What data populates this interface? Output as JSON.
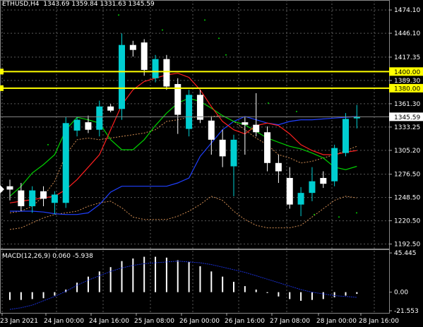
{
  "header": {
    "symbol": "ETHUSD,H4",
    "ohlc": "1343.69 1359.84 1331.63 1345.59"
  },
  "price_axis": {
    "ticks": [
      "1474.10",
      "1446.10",
      "1417.35",
      "1389.30",
      "1361.30",
      "1333.25",
      "1305.20",
      "1276.50",
      "1248.50",
      "1220.50",
      "1192.50"
    ],
    "levels": [
      {
        "label": "1400.00",
        "price": 1400.0,
        "color": "#FFFF00"
      },
      {
        "label": "1380.00",
        "price": 1380.0,
        "color": "#FFFF00"
      }
    ],
    "current_label": "1345.59",
    "current_price": 1345.59
  },
  "time_axis": {
    "labels": [
      "23 Jan 2021",
      "24 Jan 00:00",
      "24 Jan 16:00",
      "25 Jan 08:00",
      "26 Jan 00:00",
      "26 Jan 16:00",
      "27 Jan 08:00",
      "28 Jan 00:00",
      "28 Jan 16:00"
    ]
  },
  "macd": {
    "label": "MACD(12,26,9) 0.060 -5.938",
    "ticks": [
      "45.445",
      "0.00",
      "-21.553"
    ],
    "tick_values": [
      45.445,
      0.0,
      -21.553
    ]
  },
  "colors": {
    "background": "#000000",
    "bull_candle": "#00CED1",
    "bear_candle": "#FFFFFF",
    "grid": "#5a5a5a",
    "level_line": "#FFFF00",
    "ma_fast": "#FF2020",
    "ma_slow": "#00D000",
    "ma_blue": "#2040FF",
    "bands": "#F4A460"
  },
  "chart_data": {
    "type": "candlestick",
    "candles": [
      {
        "o": 1262,
        "h": 1270,
        "l": 1245,
        "c": 1258
      },
      {
        "o": 1257,
        "h": 1266,
        "l": 1232,
        "c": 1238
      },
      {
        "o": 1238,
        "h": 1262,
        "l": 1230,
        "c": 1257
      },
      {
        "o": 1256,
        "h": 1262,
        "l": 1238,
        "c": 1247
      },
      {
        "o": 1242,
        "h": 1256,
        "l": 1228,
        "c": 1252
      },
      {
        "o": 1242,
        "h": 1345,
        "l": 1236,
        "c": 1338
      },
      {
        "o": 1329,
        "h": 1345,
        "l": 1322,
        "c": 1342
      },
      {
        "o": 1339,
        "h": 1347,
        "l": 1326,
        "c": 1330
      },
      {
        "o": 1330,
        "h": 1365,
        "l": 1322,
        "c": 1358
      },
      {
        "o": 1358,
        "h": 1361,
        "l": 1351,
        "c": 1353
      },
      {
        "o": 1355,
        "h": 1446,
        "l": 1342,
        "c": 1432
      },
      {
        "o": 1432,
        "h": 1437,
        "l": 1418,
        "c": 1426
      },
      {
        "o": 1435,
        "h": 1439,
        "l": 1395,
        "c": 1402
      },
      {
        "o": 1392,
        "h": 1420,
        "l": 1387,
        "c": 1415
      },
      {
        "o": 1415,
        "h": 1420,
        "l": 1378,
        "c": 1382
      },
      {
        "o": 1385,
        "h": 1392,
        "l": 1325,
        "c": 1348
      },
      {
        "o": 1331,
        "h": 1378,
        "l": 1322,
        "c": 1372
      },
      {
        "o": 1372,
        "h": 1378,
        "l": 1338,
        "c": 1342
      },
      {
        "o": 1341,
        "h": 1346,
        "l": 1300,
        "c": 1318
      },
      {
        "o": 1318,
        "h": 1330,
        "l": 1285,
        "c": 1298
      },
      {
        "o": 1286,
        "h": 1324,
        "l": 1250,
        "c": 1318
      },
      {
        "o": 1339,
        "h": 1345,
        "l": 1300,
        "c": 1336
      },
      {
        "o": 1336,
        "h": 1374,
        "l": 1322,
        "c": 1327
      },
      {
        "o": 1327,
        "h": 1334,
        "l": 1280,
        "c": 1290
      },
      {
        "o": 1290,
        "h": 1300,
        "l": 1266,
        "c": 1280
      },
      {
        "o": 1272,
        "h": 1285,
        "l": 1235,
        "c": 1240
      },
      {
        "o": 1240,
        "h": 1261,
        "l": 1226,
        "c": 1254
      },
      {
        "o": 1254,
        "h": 1285,
        "l": 1244,
        "c": 1268
      },
      {
        "o": 1272,
        "h": 1280,
        "l": 1260,
        "c": 1265
      },
      {
        "o": 1268,
        "h": 1312,
        "l": 1262,
        "c": 1308
      },
      {
        "o": 1302,
        "h": 1350,
        "l": 1298,
        "c": 1343
      },
      {
        "o": 1343.69,
        "h": 1359.84,
        "l": 1331.63,
        "c": 1345.59
      }
    ],
    "ma_red": [
      1242,
      1244,
      1246,
      1248,
      1250,
      1258,
      1270,
      1285,
      1300,
      1330,
      1360,
      1378,
      1388,
      1392,
      1396,
      1398,
      1393,
      1378,
      1358,
      1340,
      1330,
      1325,
      1335,
      1338,
      1335,
      1325,
      1312,
      1305,
      1300,
      1300,
      1303,
      1305
    ],
    "ma_green": [
      1250,
      1262,
      1278,
      1288,
      1300,
      1330,
      1345,
      1342,
      1338,
      1318,
      1306,
      1306,
      1318,
      1335,
      1350,
      1362,
      1368,
      1364,
      1356,
      1347,
      1340,
      1336,
      1328,
      1320,
      1315,
      1310,
      1307,
      1302,
      1296,
      1285,
      1282,
      1286
    ],
    "ma_blue": [
      1232,
      1232,
      1232,
      1231,
      1229,
      1228,
      1228,
      1230,
      1240,
      1255,
      1262,
      1262,
      1262,
      1262,
      1262,
      1266,
      1272,
      1298,
      1314,
      1330,
      1340,
      1346,
      1342,
      1338,
      1336,
      1340,
      1342,
      1342,
      1343,
      1344,
      1345,
      1346
    ],
    "macd_hist": [
      -9,
      -9,
      -8,
      -7,
      -4,
      3,
      11,
      18,
      24,
      29,
      36,
      39,
      41,
      41,
      40,
      37,
      35,
      30,
      24,
      18,
      12,
      7,
      3,
      -1,
      -5,
      -8,
      -10,
      -9,
      -8,
      -6,
      -4,
      -2
    ],
    "macd_signal": [
      -20,
      -18,
      -15,
      -10,
      -5,
      1,
      8,
      14,
      19,
      24,
      28,
      31,
      33,
      34,
      35,
      36,
      35,
      34,
      32,
      29,
      26,
      23,
      19,
      15,
      11,
      7,
      3,
      0,
      -2,
      -4,
      -5,
      -6
    ]
  }
}
